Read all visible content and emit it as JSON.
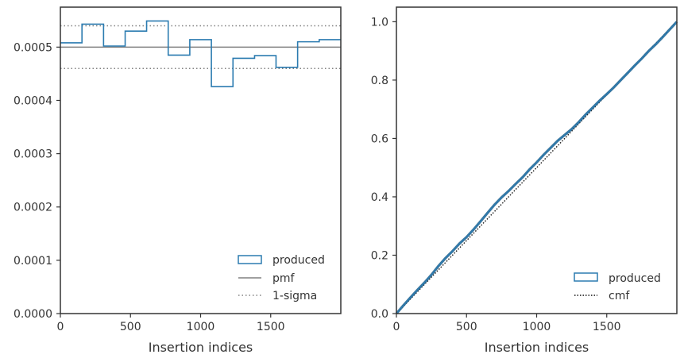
{
  "chart_data": [
    {
      "type": "step",
      "xlabel": "Insertion indices",
      "ylabel": "",
      "xlim": [
        0,
        2000
      ],
      "ylim": [
        0,
        0.000575
      ],
      "xticks": [
        0,
        500,
        1000,
        1500
      ],
      "xtick_labels": [
        "0",
        "500",
        "1000",
        "1500"
      ],
      "yticks": [
        0,
        0.0001,
        0.0002,
        0.0003,
        0.0004,
        0.0005
      ],
      "ytick_labels": [
        "0.0000",
        "0.0001",
        "0.0002",
        "0.0003",
        "0.0004",
        "0.0005"
      ],
      "bin_edges": [
        0,
        154,
        308,
        462,
        615,
        769,
        923,
        1077,
        1231,
        1385,
        1538,
        1692,
        1846,
        2000
      ],
      "produced": [
        0.000508,
        0.000543,
        0.000502,
        0.00053,
        0.000549,
        0.000485,
        0.000514,
        0.000426,
        0.000479,
        0.000484,
        0.000462,
        0.00051,
        0.000514
      ],
      "pmf": 0.0005,
      "sigma_upper": 0.00054,
      "sigma_lower": 0.00046,
      "legend": [
        "produced",
        "pmf",
        "1-sigma"
      ],
      "legend_position": "lower-right"
    },
    {
      "type": "line",
      "xlabel": "Insertion indices",
      "ylabel": "",
      "xlim": [
        0,
        2000
      ],
      "ylim": [
        0,
        1.05
      ],
      "xticks": [
        0,
        500,
        1000,
        1500
      ],
      "xtick_labels": [
        "0",
        "500",
        "1000",
        "1500"
      ],
      "yticks": [
        0,
        0.2,
        0.4,
        0.6,
        0.8,
        1.0
      ],
      "ytick_labels": [
        "0.0",
        "0.2",
        "0.4",
        "0.6",
        "0.8",
        "1.0"
      ],
      "produced": {
        "x": [
          0,
          50,
          100,
          150,
          200,
          250,
          300,
          350,
          400,
          450,
          500,
          550,
          600,
          650,
          700,
          750,
          800,
          850,
          900,
          950,
          1000,
          1050,
          1100,
          1150,
          1200,
          1250,
          1300,
          1350,
          1400,
          1450,
          1500,
          1550,
          1600,
          1650,
          1700,
          1750,
          1800,
          1850,
          1900,
          1950,
          2000
        ],
        "y": [
          0,
          0.028,
          0.055,
          0.081,
          0.106,
          0.133,
          0.163,
          0.19,
          0.214,
          0.24,
          0.262,
          0.288,
          0.316,
          0.345,
          0.373,
          0.398,
          0.42,
          0.444,
          0.467,
          0.494,
          0.518,
          0.544,
          0.568,
          0.592,
          0.612,
          0.632,
          0.656,
          0.682,
          0.706,
          0.73,
          0.752,
          0.775,
          0.8,
          0.825,
          0.85,
          0.874,
          0.9,
          0.923,
          0.948,
          0.974,
          1.0
        ]
      },
      "cmf": {
        "x": [
          0,
          2000
        ],
        "y": [
          0,
          1
        ]
      },
      "legend": [
        "produced",
        "cmf"
      ],
      "legend_position": "lower-right"
    }
  ]
}
